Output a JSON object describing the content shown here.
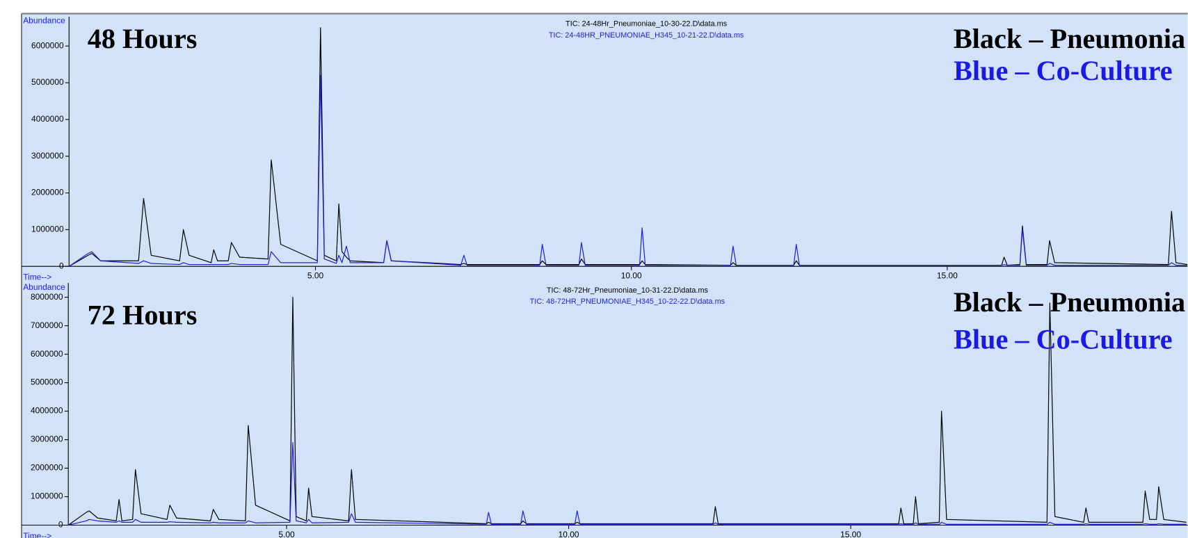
{
  "chart_data": [
    {
      "type": "line",
      "y_label": "Abundance",
      "x_label": "Time-->",
      "xlim": [
        1.1,
        18.8
      ],
      "xticks": [
        {
          "value": 5,
          "label": "5.00"
        },
        {
          "value": 10,
          "label": "10.00"
        },
        {
          "value": 15,
          "label": "15.00"
        }
      ],
      "ylim": [
        0,
        6800000
      ],
      "yticks": [
        0,
        1000000,
        2000000,
        3000000,
        4000000,
        5000000,
        6000000
      ],
      "annotations": [
        {
          "text": "48 Hours",
          "color": "#000000"
        },
        {
          "text": "Black – Pneumonia",
          "color": "#000000"
        },
        {
          "text": "Blue – Co-Culture",
          "color": "#1a1ae6"
        }
      ],
      "x": [
        1.1,
        1.4,
        1.46,
        1.6,
        2.2,
        2.28,
        2.4,
        2.85,
        2.91,
        3.0,
        3.35,
        3.39,
        3.45,
        3.62,
        3.67,
        3.8,
        4.25,
        4.3,
        4.45,
        5.03,
        5.08,
        5.14,
        5.33,
        5.37,
        5.42,
        5.49,
        5.55,
        6.08,
        6.13,
        6.2,
        7.3,
        7.35,
        7.4,
        8.55,
        8.59,
        8.65,
        9.17,
        9.21,
        9.27,
        10.13,
        10.17,
        10.22,
        11.57,
        11.61,
        11.66,
        12.57,
        12.61,
        12.66,
        15.86,
        15.9,
        15.95,
        16.15,
        16.19,
        16.25,
        16.58,
        16.62,
        16.7,
        18.5,
        18.55,
        18.62,
        18.8
      ],
      "series": [
        {
          "name": "TIC: 24-48Hr_Pneumoniae_10-30-22.D\\data.ms",
          "color": "#000000",
          "values": [
            0,
            300000,
            350000,
            150000,
            150000,
            1850000,
            300000,
            150000,
            1000000,
            300000,
            100000,
            450000,
            150000,
            150000,
            650000,
            250000,
            200000,
            2900000,
            600000,
            150000,
            6500000,
            300000,
            150000,
            1700000,
            400000,
            250000,
            150000,
            100000,
            700000,
            150000,
            50000,
            80000,
            50000,
            50000,
            150000,
            50000,
            50000,
            200000,
            50000,
            50000,
            150000,
            50000,
            30000,
            100000,
            30000,
            30000,
            150000,
            30000,
            30000,
            250000,
            30000,
            50000,
            1100000,
            50000,
            50000,
            700000,
            100000,
            50000,
            1500000,
            100000,
            50000
          ]
        },
        {
          "name": "TIC: 24-48HR_PNEUMONIAE_H345_10-21-22.D\\data.ms",
          "color": "#1f1fd9",
          "values": [
            0,
            350000,
            400000,
            150000,
            80000,
            150000,
            80000,
            50000,
            100000,
            50000,
            50000,
            50000,
            50000,
            50000,
            80000,
            50000,
            50000,
            400000,
            100000,
            100000,
            5200000,
            200000,
            80000,
            300000,
            100000,
            550000,
            100000,
            100000,
            700000,
            150000,
            30000,
            300000,
            30000,
            30000,
            600000,
            30000,
            30000,
            650000,
            30000,
            30000,
            1050000,
            30000,
            30000,
            550000,
            30000,
            30000,
            600000,
            30000,
            30000,
            50000,
            30000,
            30000,
            1000000,
            30000,
            30000,
            80000,
            30000,
            30000,
            100000,
            30000,
            30000
          ]
        }
      ]
    },
    {
      "type": "line",
      "y_label": "Abundance",
      "x_label": "Time-->",
      "xlim": [
        1.13,
        20.95
      ],
      "xticks": [
        {
          "value": 5,
          "label": "5.00"
        },
        {
          "value": 10,
          "label": "10.00"
        },
        {
          "value": 15,
          "label": "15.00"
        }
      ],
      "ylim": [
        0,
        8500000
      ],
      "yticks": [
        0,
        1000000,
        2000000,
        3000000,
        4000000,
        5000000,
        6000000,
        7000000,
        8000000
      ],
      "annotations": [
        {
          "text": "72 Hours",
          "color": "#000000"
        },
        {
          "text": "Black – Pneumonia",
          "color": "#000000"
        },
        {
          "text": "Blue – Co-Culture",
          "color": "#1a1ae6"
        }
      ],
      "x": [
        1.13,
        1.45,
        1.5,
        1.65,
        1.98,
        2.03,
        2.08,
        2.27,
        2.32,
        2.42,
        2.88,
        2.93,
        3.05,
        3.65,
        3.7,
        3.8,
        4.27,
        4.32,
        4.45,
        5.06,
        5.11,
        5.17,
        5.35,
        5.39,
        5.45,
        6.1,
        6.15,
        6.22,
        8.54,
        8.58,
        8.63,
        9.15,
        9.19,
        9.25,
        10.11,
        10.15,
        10.2,
        12.56,
        12.6,
        12.65,
        15.85,
        15.89,
        15.94,
        16.11,
        16.15,
        16.2,
        16.57,
        16.61,
        16.7,
        18.48,
        18.53,
        18.62,
        19.13,
        19.17,
        19.22,
        20.18,
        20.22,
        20.3,
        20.42,
        20.46,
        20.55,
        20.95
      ],
      "series": [
        {
          "name": "TIC: 48-72Hr_Pneumoniae_10-31-22.D\\data.ms",
          "color": "#000000",
          "values": [
            0,
            450000,
            500000,
            250000,
            150000,
            900000,
            150000,
            200000,
            1950000,
            400000,
            200000,
            700000,
            250000,
            150000,
            550000,
            200000,
            150000,
            3500000,
            700000,
            150000,
            8000000,
            300000,
            150000,
            1300000,
            300000,
            150000,
            1950000,
            200000,
            50000,
            100000,
            50000,
            50000,
            150000,
            50000,
            50000,
            100000,
            50000,
            50000,
            650000,
            50000,
            50000,
            600000,
            50000,
            50000,
            1000000,
            50000,
            100000,
            4000000,
            200000,
            100000,
            7800000,
            300000,
            100000,
            600000,
            100000,
            100000,
            1200000,
            200000,
            200000,
            1350000,
            200000,
            100000
          ]
        },
        {
          "name": "TIC: 48-72HR_PNEUMONIAE_H345_10-22-22.D\\data.ms",
          "color": "#1f1fd9",
          "values": [
            0,
            150000,
            200000,
            150000,
            100000,
            150000,
            100000,
            100000,
            200000,
            100000,
            100000,
            120000,
            100000,
            80000,
            100000,
            80000,
            80000,
            150000,
            80000,
            100000,
            2900000,
            150000,
            80000,
            200000,
            80000,
            100000,
            400000,
            100000,
            30000,
            450000,
            30000,
            30000,
            500000,
            30000,
            30000,
            500000,
            30000,
            30000,
            80000,
            30000,
            30000,
            50000,
            30000,
            30000,
            80000,
            30000,
            30000,
            100000,
            30000,
            30000,
            100000,
            30000,
            30000,
            50000,
            30000,
            30000,
            50000,
            30000,
            30000,
            50000,
            30000,
            30000
          ]
        }
      ]
    }
  ]
}
